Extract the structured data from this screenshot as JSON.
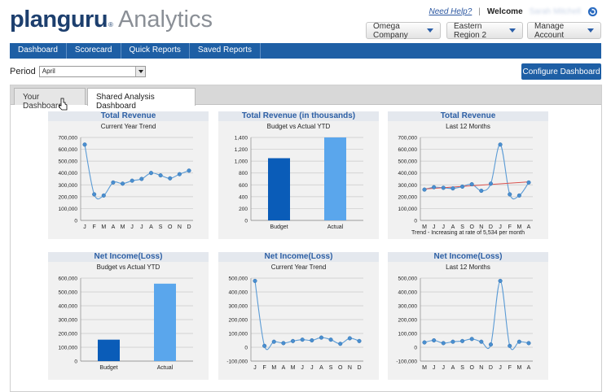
{
  "header": {
    "logo": "planguru",
    "reg_mark": "®",
    "product": "Analytics",
    "help_link": "Need Help?",
    "separator": "|",
    "welcome": "Welcome",
    "user_name": "Sarah Mitchell",
    "company_dropdown": "Omega Company",
    "region_dropdown": "Eastern Region 2",
    "account_dropdown": "Manage Account",
    "accent_color": "#1e5fa5"
  },
  "nav": {
    "items": [
      "Dashboard",
      "Scorecard",
      "Quick Reports",
      "Saved Reports"
    ]
  },
  "period": {
    "label": "Period",
    "value": "April"
  },
  "configure_button": "Configure Dashboard",
  "tabs": [
    {
      "label": "Your Dashboard",
      "active": false
    },
    {
      "label": "Shared Analysis Dashboard",
      "active": true
    }
  ],
  "chart_data": [
    {
      "type": "line",
      "title": "Total Revenue",
      "subtitle": "Current Year Trend",
      "categories": [
        "J",
        "F",
        "M",
        "A",
        "M",
        "J",
        "J",
        "A",
        "S",
        "O",
        "N",
        "D"
      ],
      "values": [
        640000,
        220000,
        210000,
        320000,
        310000,
        335000,
        350000,
        400000,
        380000,
        355000,
        390000,
        420000
      ],
      "ylim": [
        0,
        700000
      ],
      "yticks": [
        "700,000",
        "600,000",
        "500,000",
        "400,000",
        "300,000",
        "200,000",
        "100,000",
        "0"
      ],
      "grid": true
    },
    {
      "type": "bar",
      "title": "Total Revenue (in thousands)",
      "subtitle": "Budget vs Actual YTD",
      "categories": [
        "Budget",
        "Actual"
      ],
      "values": [
        1050,
        1400
      ],
      "colors": [
        "#0a5cb8",
        "#5aa6ec"
      ],
      "ylim": [
        0,
        1400
      ],
      "yticks": [
        "1,400",
        "1,200",
        "1,000",
        "800",
        "600",
        "400",
        "200",
        "0"
      ],
      "grid": true
    },
    {
      "type": "line",
      "title": "Total Revenue",
      "subtitle": "Last 12 Months",
      "categories": [
        "M",
        "J",
        "J",
        "A",
        "S",
        "O",
        "N",
        "D",
        "J",
        "F",
        "M",
        "A"
      ],
      "values": [
        260000,
        280000,
        275000,
        270000,
        285000,
        305000,
        250000,
        310000,
        640000,
        220000,
        210000,
        320000
      ],
      "trend": [
        265000,
        325000
      ],
      "trend_color": "#d9534f",
      "ylim": [
        0,
        700000
      ],
      "yticks": [
        "700,000",
        "600,000",
        "500,000",
        "400,000",
        "300,000",
        "200,000",
        "100,000",
        "0"
      ],
      "footer": "Trend - Increasing at rate of 5,534 per month",
      "grid": true
    },
    {
      "type": "bar",
      "title": "Net Income(Loss)",
      "subtitle": "Budget vs Actual YTD",
      "categories": [
        "Budget",
        "Actual"
      ],
      "values": [
        155000,
        560000
      ],
      "colors": [
        "#0a5cb8",
        "#5aa6ec"
      ],
      "ylim": [
        0,
        600000
      ],
      "yticks": [
        "600,000",
        "500,000",
        "400,000",
        "300,000",
        "200,000",
        "100,000",
        "0"
      ],
      "grid": true
    },
    {
      "type": "line",
      "title": "Net Income(Loss)",
      "subtitle": "Current Year Trend",
      "categories": [
        "J",
        "F",
        "M",
        "A",
        "M",
        "J",
        "J",
        "A",
        "S",
        "O",
        "N",
        "D"
      ],
      "values": [
        480000,
        10000,
        40000,
        30000,
        45000,
        55000,
        50000,
        70000,
        55000,
        25000,
        65000,
        45000
      ],
      "ylim": [
        -100000,
        500000
      ],
      "yticks": [
        "500,000",
        "400,000",
        "300,000",
        "200,000",
        "100,000",
        "0",
        "-100,000"
      ],
      "grid": true
    },
    {
      "type": "line",
      "title": "Net Income(Loss)",
      "subtitle": "Last 12 Months",
      "categories": [
        "M",
        "J",
        "J",
        "A",
        "S",
        "O",
        "N",
        "D",
        "J",
        "F",
        "M",
        "A"
      ],
      "values": [
        35000,
        50000,
        30000,
        40000,
        45000,
        60000,
        40000,
        20000,
        480000,
        10000,
        40000,
        30000
      ],
      "ylim": [
        -100000,
        500000
      ],
      "yticks": [
        "500,000",
        "400,000",
        "300,000",
        "200,000",
        "100,000",
        "0",
        "-100,000"
      ],
      "grid": true
    }
  ]
}
